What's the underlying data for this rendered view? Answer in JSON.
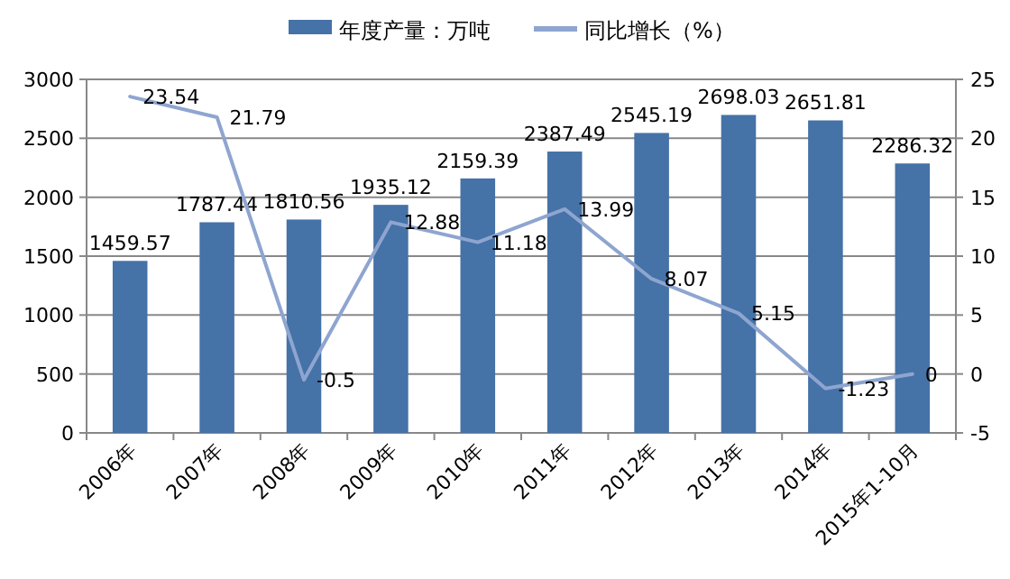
{
  "chart_data": {
    "type": "bar",
    "categories": [
      "2006年",
      "2007年",
      "2008年",
      "2009年",
      "2010年",
      "2011年",
      "2012年",
      "2013年",
      "2014年",
      "2015年1-10月"
    ],
    "series": [
      {
        "name": "年度产量：万吨",
        "color": "#4572a7",
        "values": [
          1459.57,
          1787.44,
          1810.56,
          1935.12,
          2159.39,
          2387.49,
          2545.19,
          2698.03,
          2651.81,
          2286.32
        ]
      },
      {
        "name": "同比增长（%）",
        "type": "line",
        "axis": "y2",
        "color": "#8ea5d0",
        "values": [
          23.54,
          21.79,
          -0.5,
          12.88,
          11.18,
          13.99,
          8.07,
          5.15,
          -1.23,
          0
        ]
      }
    ],
    "ylim": [
      0,
      3000
    ],
    "yticks": [
      0,
      500,
      1000,
      1500,
      2000,
      2500,
      3000
    ],
    "y2lim": [
      -5,
      25
    ],
    "y2ticks": [
      -5,
      0,
      5,
      10,
      15,
      20,
      25
    ],
    "grid": "y",
    "legend": "top",
    "data_labels": true
  }
}
